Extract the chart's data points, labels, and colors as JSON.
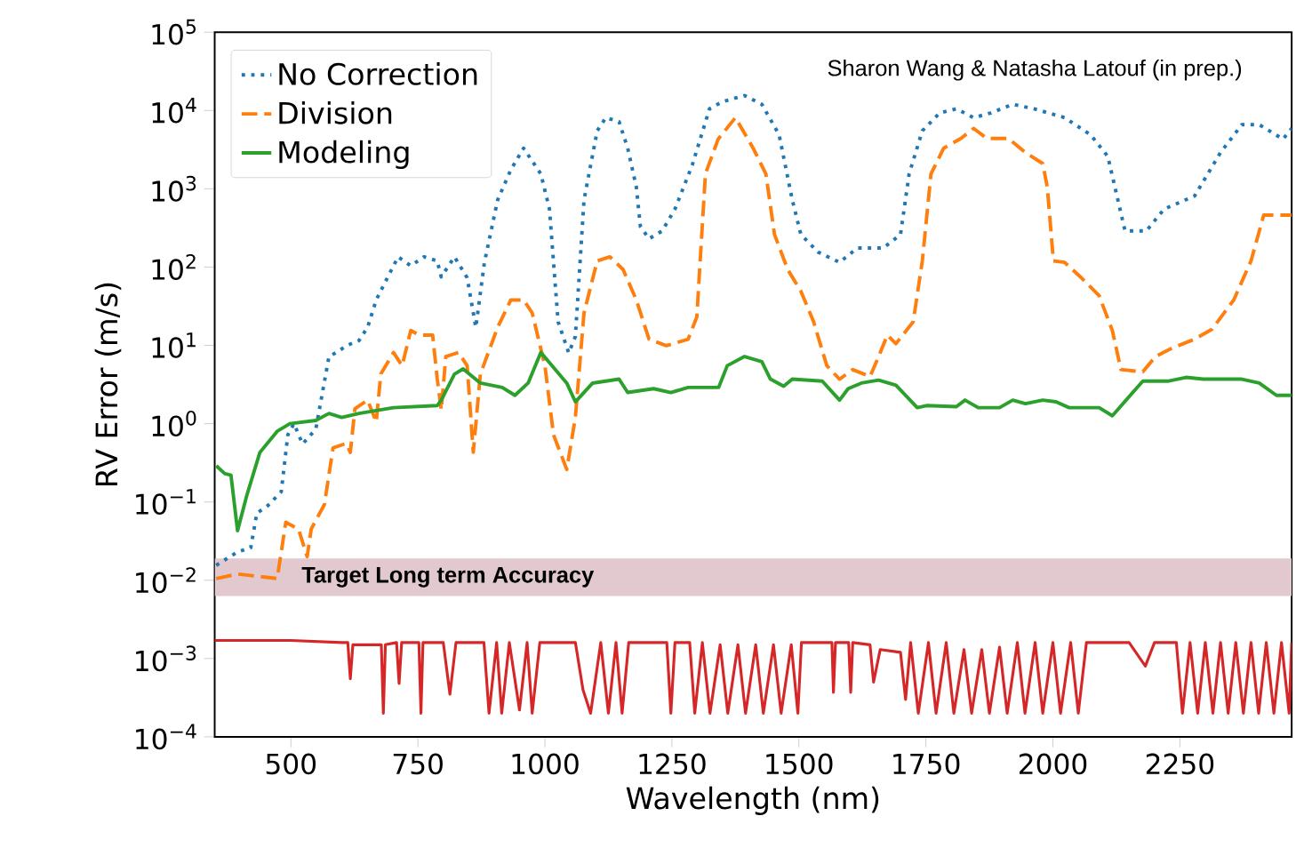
{
  "chart_data": {
    "type": "line",
    "xlabel": "Wavelength (nm)",
    "ylabel": "RV Error (m/s)",
    "log": "y",
    "xlim": [
      350,
      2470
    ],
    "ylim": [
      0.0001,
      100000
    ],
    "xticks": [
      500,
      750,
      1000,
      1250,
      1500,
      1750,
      2000,
      2250
    ],
    "yticks": [
      {
        "value": 0.0001,
        "label": "10$^{−4}$"
      },
      {
        "value": 0.001,
        "label": "10$^{−3}$"
      },
      {
        "value": 0.01,
        "label": "10$^{−2}$"
      },
      {
        "value": 0.1,
        "label": "10$^{−1}$"
      },
      {
        "value": 1,
        "label": "10$^{0}$"
      },
      {
        "value": 10,
        "label": "10$^{1}$"
      },
      {
        "value": 100,
        "label": "10$^{2}$"
      },
      {
        "value": 1000,
        "label": "10$^{3}$"
      },
      {
        "value": 10000,
        "label": "10$^{4}$"
      },
      {
        "value": 100000,
        "label": "10$^{5}$"
      }
    ],
    "legend": "top left",
    "annotations": [
      "Sharon Wang & Natasha Latouf (in prep.)"
    ],
    "bands": [
      {
        "axis": "y",
        "from": 0.0063,
        "to": 0.019,
        "label": "Target Long term Accuracy",
        "color": "#e2c8cf"
      }
    ],
    "series": [
      {
        "name": "No Correction",
        "color": "#1f77b4",
        "line_style": "dotted",
        "x": [
          353,
          395,
          421,
          433,
          455,
          481,
          494,
          506,
          523,
          549,
          575,
          592,
          609,
          634,
          651,
          668,
          685,
          711,
          736,
          762,
          788,
          796,
          822,
          847,
          864,
          881,
          907,
          933,
          958,
          992,
          1009,
          1026,
          1047,
          1060,
          1077,
          1103,
          1120,
          1146,
          1163,
          1180,
          1188,
          1205,
          1231,
          1256,
          1290,
          1324,
          1350,
          1393,
          1427,
          1461,
          1487,
          1504,
          1538,
          1580,
          1615,
          1666,
          1700,
          1717,
          1743,
          1777,
          1810,
          1844,
          1878,
          1921,
          1963,
          2023,
          2074,
          2108,
          2142,
          2184,
          2219,
          2279,
          2330,
          2372,
          2406,
          2453,
          2470
        ],
        "values": [
          0.0155,
          0.023,
          0.026,
          0.072,
          0.09,
          0.135,
          0.72,
          1.0,
          0.55,
          0.85,
          7.2,
          8.3,
          9.9,
          11.5,
          17,
          38,
          63,
          135,
          104,
          135,
          120,
          75,
          135,
          73,
          17,
          115,
          720,
          1750,
          3300,
          1550,
          550,
          20,
          8,
          13,
          720,
          5500,
          8100,
          7200,
          3300,
          1050,
          330,
          230,
          290,
          550,
          2000,
          10500,
          13000,
          15500,
          12000,
          4900,
          720,
          260,
          155,
          115,
          175,
          175,
          260,
          1550,
          5500,
          9300,
          10500,
          8100,
          9300,
          12000,
          10500,
          8100,
          4900,
          2600,
          290,
          290,
          550,
          810,
          2900,
          6600,
          6600,
          4300,
          5900
        ]
      },
      {
        "name": "Division",
        "color": "#ff7f0e",
        "line_style": "dashed",
        "x": [
          353,
          395,
          473,
          490,
          515,
          532,
          540,
          566,
          583,
          609,
          617,
          626,
          651,
          668,
          677,
          702,
          719,
          736,
          753,
          779,
          788,
          796,
          805,
          830,
          847,
          859,
          873,
          907,
          933,
          958,
          975,
          1000,
          1017,
          1043,
          1060,
          1077,
          1103,
          1128,
          1154,
          1180,
          1205,
          1239,
          1282,
          1299,
          1316,
          1341,
          1375,
          1410,
          1435,
          1452,
          1478,
          1504,
          1529,
          1555,
          1580,
          1606,
          1640,
          1657,
          1674,
          1691,
          1725,
          1743,
          1760,
          1785,
          1819,
          1844,
          1870,
          1912,
          1946,
          1980,
          1989,
          2001,
          2023,
          2057,
          2091,
          2117,
          2134,
          2177,
          2202,
          2236,
          2279,
          2313,
          2356,
          2390,
          2415,
          2470
        ],
        "values": [
          0.0105,
          0.012,
          0.0105,
          0.055,
          0.045,
          0.02,
          0.045,
          0.093,
          0.49,
          0.56,
          0.43,
          1.55,
          2.0,
          1.05,
          4.3,
          8.1,
          5.5,
          15.5,
          13.5,
          13.5,
          3.8,
          1.5,
          7.2,
          8.1,
          5.5,
          0.43,
          4.3,
          17,
          38,
          38,
          26,
          5.5,
          0.72,
          0.26,
          1.2,
          26,
          120,
          135,
          93,
          38,
          12,
          9.9,
          12,
          23,
          1550,
          4300,
          8100,
          3300,
          1550,
          260,
          93,
          49,
          20,
          5.5,
          3.7,
          4.9,
          4.0,
          7.2,
          13.5,
          10.5,
          20,
          120,
          1550,
          3300,
          4400,
          5900,
          4400,
          4400,
          2900,
          2100,
          1050,
          120,
          115,
          72,
          43,
          15.5,
          4.9,
          4.6,
          7.2,
          9.3,
          12,
          16,
          38,
          120,
          460,
          460
        ]
      },
      {
        "name": "Modeling",
        "color": "#2ca02c",
        "line_style": "solid",
        "x": [
          353,
          370,
          382,
          395,
          413,
          439,
          473,
          498,
          549,
          575,
          600,
          634,
          702,
          788,
          796,
          822,
          839,
          873,
          916,
          941,
          967,
          992,
          1009,
          1043,
          1060,
          1094,
          1146,
          1163,
          1214,
          1248,
          1282,
          1342,
          1359,
          1393,
          1427,
          1444,
          1470,
          1487,
          1546,
          1580,
          1597,
          1623,
          1657,
          1691,
          1733,
          1751,
          1810,
          1827,
          1853,
          1895,
          1921,
          1946,
          1980,
          2006,
          2032,
          2091,
          2117,
          2177,
          2228,
          2262,
          2296,
          2372,
          2406,
          2440,
          2470
        ],
        "values": [
          0.29,
          0.23,
          0.22,
          0.043,
          0.12,
          0.43,
          0.8,
          1.0,
          1.1,
          1.35,
          1.2,
          1.35,
          1.6,
          1.7,
          2.0,
          4.3,
          5.0,
          3.3,
          2.9,
          2.3,
          3.3,
          8.1,
          6,
          3.3,
          1.9,
          3.3,
          3.7,
          2.5,
          2.8,
          2.5,
          2.9,
          2.9,
          5.5,
          7.2,
          6.2,
          3.7,
          3.0,
          3.7,
          3.5,
          2.0,
          2.8,
          3.3,
          3.6,
          3.1,
          1.6,
          1.7,
          1.65,
          2.0,
          1.6,
          1.6,
          2.0,
          1.8,
          2.0,
          1.9,
          1.6,
          1.6,
          1.26,
          3.5,
          3.5,
          3.9,
          3.7,
          3.7,
          3.3,
          2.3,
          2.3
        ]
      },
      {
        "color": "#d62728",
        "line_style": "solid",
        "x": [
          350,
          500,
          600,
          612,
          617,
          622,
          678,
          682,
          686,
          708,
          713,
          718,
          752,
          756,
          760,
          800,
          813,
          825,
          880,
          890,
          905,
          915,
          930,
          950,
          965,
          975,
          990,
          1060,
          1075,
          1090,
          1110,
          1125,
          1140,
          1152,
          1165,
          1240,
          1248,
          1256,
          1285,
          1295,
          1310,
          1325,
          1345,
          1360,
          1380,
          1395,
          1415,
          1430,
          1450,
          1465,
          1485,
          1498,
          1505,
          1565,
          1568,
          1572,
          1598,
          1602,
          1606,
          1640,
          1647,
          1660,
          1700,
          1710,
          1720,
          1735,
          1755,
          1770,
          1790,
          1805,
          1825,
          1840,
          1860,
          1875,
          1895,
          1910,
          1930,
          1945,
          1965,
          1980,
          2000,
          2015,
          2035,
          2050,
          2066,
          2150,
          2182,
          2200,
          2243,
          2255,
          2270,
          2285,
          2300,
          2315,
          2330,
          2345,
          2360,
          2375,
          2390,
          2405,
          2420,
          2435,
          2450,
          2465,
          2470
        ],
        "values": [
          0.0017,
          0.0017,
          0.0016,
          0.0016,
          0.00055,
          0.0015,
          0.0015,
          0.0002,
          0.0015,
          0.0016,
          0.00048,
          0.0016,
          0.0016,
          0.0002,
          0.0016,
          0.0016,
          0.00035,
          0.0016,
          0.0016,
          0.0002,
          0.0016,
          0.0002,
          0.0016,
          0.00022,
          0.0016,
          0.0002,
          0.0016,
          0.0016,
          0.0004,
          0.0002,
          0.0016,
          0.0002,
          0.0016,
          0.0002,
          0.0016,
          0.0016,
          0.0002,
          0.0016,
          0.0016,
          0.0002,
          0.0016,
          0.0002,
          0.0015,
          0.0002,
          0.0015,
          0.0002,
          0.0015,
          0.0002,
          0.0015,
          0.0002,
          0.0015,
          0.0002,
          0.0016,
          0.0016,
          0.00037,
          0.0016,
          0.0016,
          0.00037,
          0.0016,
          0.0015,
          0.0005,
          0.0013,
          0.0012,
          0.0003,
          0.0016,
          0.0002,
          0.0016,
          0.0002,
          0.0016,
          0.0002,
          0.0013,
          0.0002,
          0.0013,
          0.0002,
          0.0014,
          0.0002,
          0.0016,
          0.0002,
          0.0016,
          0.0002,
          0.0016,
          0.0002,
          0.0016,
          0.0002,
          0.0016,
          0.0016,
          0.0008,
          0.0016,
          0.0016,
          0.0002,
          0.0016,
          0.0002,
          0.0016,
          0.0002,
          0.0016,
          0.0002,
          0.0016,
          0.0002,
          0.0016,
          0.0002,
          0.0016,
          0.0002,
          0.0016,
          0.0002,
          0.0016
        ]
      }
    ]
  }
}
